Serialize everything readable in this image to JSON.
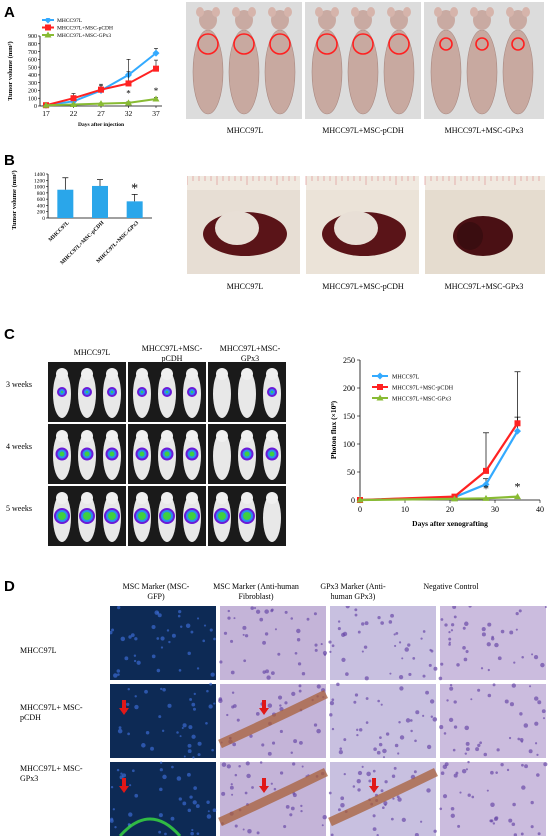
{
  "panels": {
    "A": {
      "letter": "A",
      "legend": [
        "MHCC97L",
        "MHCC97L+MSC-pCDH",
        "MHCC97L+MSC-GPx3"
      ],
      "colors": {
        "mhcc97l": "#33aaff",
        "pcdh": "#ff2222",
        "gpx3": "#88bb33"
      },
      "star": "*",
      "photo_captions": [
        "MHCC97L",
        "MHCC97L+MSC-pCDH",
        "MHCC97L+MSC-GPx3"
      ]
    },
    "B": {
      "letter": "B",
      "star": "*",
      "photo_captions": [
        "MHCC97L",
        "MHCC97L+MSC-pCDH",
        "MHCC97L+MSC-GPx3"
      ]
    },
    "C": {
      "letter": "C",
      "group_labels": [
        "MHCC97L",
        "MHCC97L+MSC-pCDH",
        "MHCC97L+MSC-GPx3"
      ],
      "row_labels": [
        "3 weeks",
        "4 weeks",
        "5 weeks"
      ],
      "legend": [
        "MHCC97L",
        "MHCC97L+MSC-pCDH",
        "MHCC97L+MSC-GPx3"
      ],
      "star": "*"
    },
    "D": {
      "letter": "D",
      "col_headers": [
        "MSC Marker (MSC-GFP)",
        "MSC Marker (Anti-human Fibroblast)",
        "GPx3 Marker (Anti-human GPx3)",
        "Negative Control"
      ],
      "row_labels": [
        "MHCC97L",
        "MHCC97L+ MSC-pCDH",
        "MHCC97L+ MSC-GPx3"
      ]
    }
  },
  "chart_data": [
    {
      "type": "line",
      "title": "",
      "xlabel": "Days after injection",
      "ylabel": "Tumor volume (mm³)",
      "x": [
        17,
        22,
        27,
        32,
        37
      ],
      "ylim": [
        0,
        900
      ],
      "yticks": [
        0,
        100,
        200,
        300,
        400,
        500,
        600,
        700,
        800,
        900
      ],
      "series": [
        {
          "name": "MHCC97L",
          "values": [
            10,
            60,
            200,
            400,
            680
          ],
          "errors": [
            10,
            40,
            60,
            200,
            60
          ]
        },
        {
          "name": "MHCC97L+MSC-pCDH",
          "values": [
            10,
            100,
            210,
            290,
            480
          ],
          "errors": [
            10,
            60,
            70,
            150,
            110
          ]
        },
        {
          "name": "MHCC97L+MSC-GPx3",
          "values": [
            10,
            20,
            30,
            40,
            90
          ],
          "errors": [
            5,
            10,
            10,
            15,
            20
          ]
        }
      ]
    },
    {
      "type": "bar",
      "title": "",
      "ylabel": "Tumor volume (mm³)",
      "categories": [
        "MHCC97L",
        "MHCC97L+MSC-pCDH",
        "MHCC97L+MSC-GPx3"
      ],
      "values": [
        900,
        1020,
        530
      ],
      "errors": [
        380,
        200,
        220
      ],
      "ylim": [
        0,
        1400
      ],
      "yticks": [
        0,
        200,
        400,
        600,
        800,
        1000,
        1200,
        1400
      ]
    },
    {
      "type": "line",
      "title": "",
      "xlabel": "Days after xenografting",
      "ylabel": "Photon flux (×10⁹)",
      "x": [
        0,
        21,
        28,
        35
      ],
      "xlim": [
        0,
        40
      ],
      "xticks": [
        0,
        10,
        20,
        30,
        40
      ],
      "ylim": [
        0,
        250
      ],
      "yticks": [
        0,
        50,
        100,
        150,
        200,
        250
      ],
      "series": [
        {
          "name": "MHCC97L",
          "values": [
            0,
            5,
            28,
            123
          ],
          "errors": [
            0,
            2,
            10,
            25
          ]
        },
        {
          "name": "MHCC97L+MSC-pCDH",
          "values": [
            0,
            6,
            52,
            137
          ],
          "errors": [
            0,
            3,
            68,
            92
          ]
        },
        {
          "name": "MHCC97L+MSC-GPx3",
          "values": [
            0,
            2,
            3,
            6
          ],
          "errors": [
            0,
            1,
            2,
            3
          ]
        }
      ]
    }
  ]
}
